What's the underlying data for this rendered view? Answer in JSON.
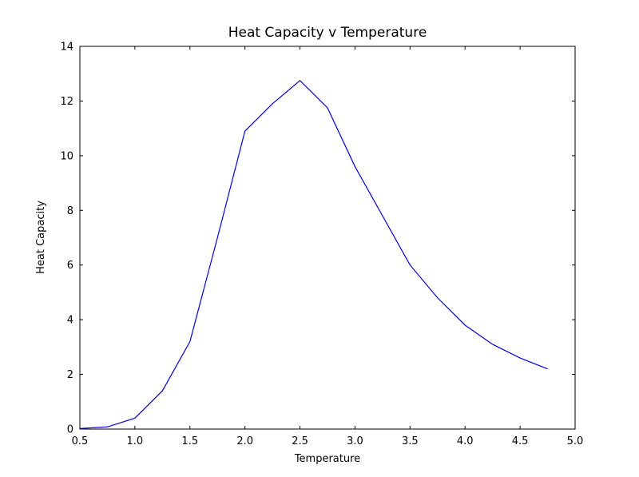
{
  "chart_data": {
    "type": "line",
    "title": "Heat Capacity v Temperature",
    "xlabel": "Temperature",
    "ylabel": "Heat Capacity",
    "xlim": [
      0.5,
      5.0
    ],
    "ylim": [
      0,
      14
    ],
    "grid": false,
    "legend": "none",
    "line_color": "#0000ff",
    "axes_color": "#000000",
    "background_color": "#ffffff",
    "xticks": {
      "values": [
        0.5,
        1.0,
        1.5,
        2.0,
        2.5,
        3.0,
        3.5,
        4.0,
        4.5,
        5.0
      ],
      "labels": [
        "0.5",
        "1.0",
        "1.5",
        "2.0",
        "2.5",
        "3.0",
        "3.5",
        "4.0",
        "4.5",
        "5.0"
      ]
    },
    "yticks": {
      "values": [
        0,
        2,
        4,
        6,
        8,
        10,
        12,
        14
      ],
      "labels": [
        "0",
        "2",
        "4",
        "6",
        "8",
        "10",
        "12",
        "14"
      ]
    },
    "series": [
      {
        "name": "heat-capacity",
        "x": [
          0.5,
          0.75,
          1.0,
          1.25,
          1.5,
          1.75,
          2.0,
          2.25,
          2.5,
          2.75,
          3.0,
          3.25,
          3.5,
          3.75,
          4.0,
          4.25,
          4.5,
          4.75
        ],
        "y": [
          0.02,
          0.08,
          0.4,
          1.4,
          3.2,
          7.0,
          10.9,
          11.9,
          12.75,
          11.75,
          9.6,
          7.8,
          6.0,
          4.8,
          3.8,
          3.1,
          2.6,
          2.2
        ]
      }
    ]
  }
}
